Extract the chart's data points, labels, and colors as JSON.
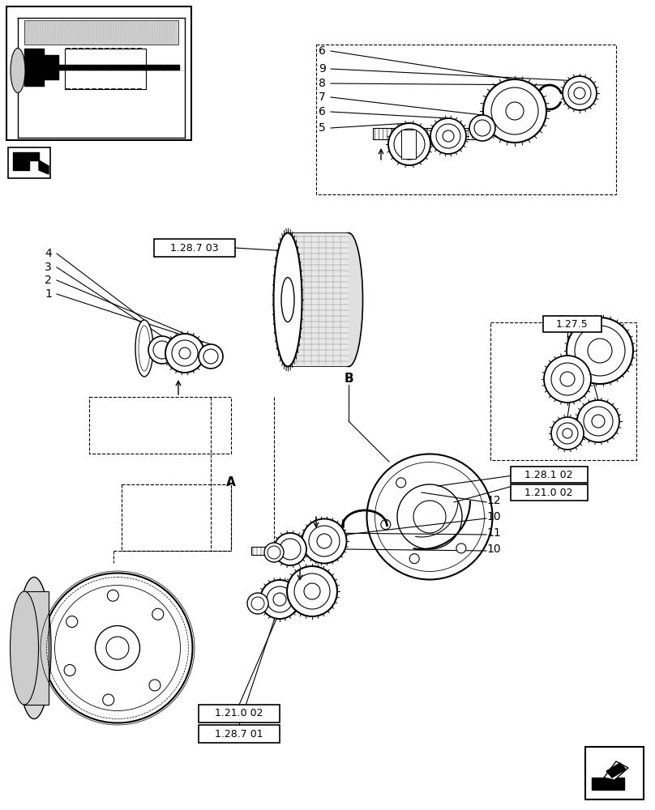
{
  "background_color": "#ffffff",
  "line_color": "#000000",
  "labels": {
    "ref1": "1.28.7 03",
    "ref2": "1.27.5",
    "ref3": "1.28.1 02",
    "ref4": "1.21.0 02",
    "ref5": "1.21.0 02",
    "ref6": "1.28.7 01",
    "labelA": "A",
    "labelB": "B",
    "n1": "1",
    "n2": "2",
    "n3": "3",
    "n4": "4",
    "n5": "5",
    "n6a": "6",
    "n6b": "6",
    "n7": "7",
    "n8": "8",
    "n9": "9",
    "n10a": "10",
    "n10b": "10",
    "n11": "11",
    "n12": "12"
  },
  "fig_width": 8.08,
  "fig_height": 10.0,
  "dpi": 100
}
